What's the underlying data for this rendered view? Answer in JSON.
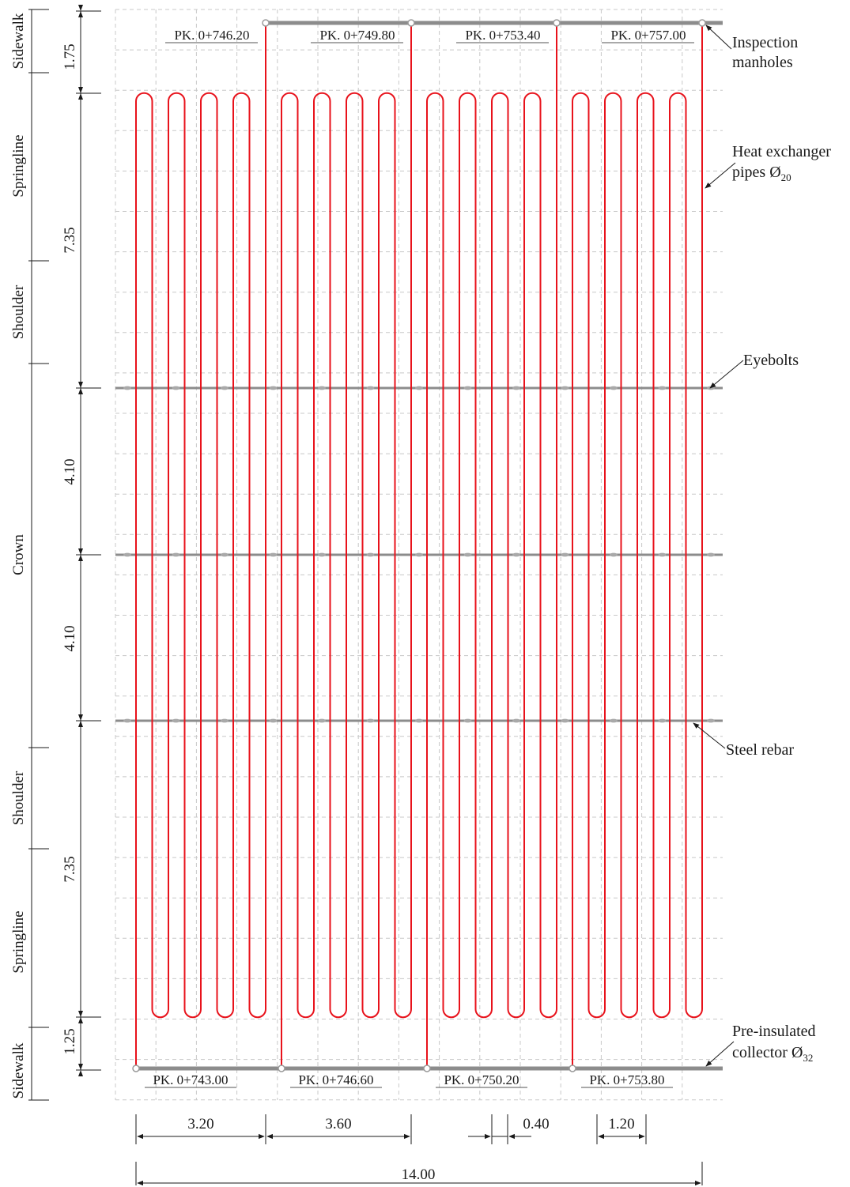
{
  "pk_labels_top": [
    "PK. 0+746.20",
    "PK. 0+749.80",
    "PK. 0+753.40",
    "PK. 0+757.00"
  ],
  "pk_labels_bottom": [
    "PK. 0+743.00",
    "PK. 0+746.60",
    "PK. 0+750.20",
    "PK. 0+753.80"
  ],
  "zones": [
    "Sidewalk",
    "Springline",
    "Shoulder",
    "Crown",
    "Shoulder",
    "Springline",
    "Sidewalk"
  ],
  "vertical_dimensions": [
    "1.75",
    "7.35",
    "4.10",
    "4.10",
    "7.35",
    "1.25"
  ],
  "horizontal_dimensions": {
    "d1": "3.20",
    "d2": "3.60",
    "d3": "0.40",
    "d4": "1.20",
    "total": "14.00"
  },
  "annotations": {
    "inspection_line1": "Inspection",
    "inspection_line2": "manholes",
    "heat_line1": "Heat exchanger",
    "heat_line2": "pipes Ø",
    "heat_sub": "20",
    "eyebolts": "Eyebolts",
    "rebar": "Steel rebar",
    "collector_line1": "Pre-insulated",
    "collector_line2": "collector Ø",
    "collector_sub": "32"
  },
  "colors": {
    "pipe": "#e8121b",
    "collector": "#8c8c8c",
    "grid": "#c8c8c8",
    "text": "#1a1a1a"
  }
}
